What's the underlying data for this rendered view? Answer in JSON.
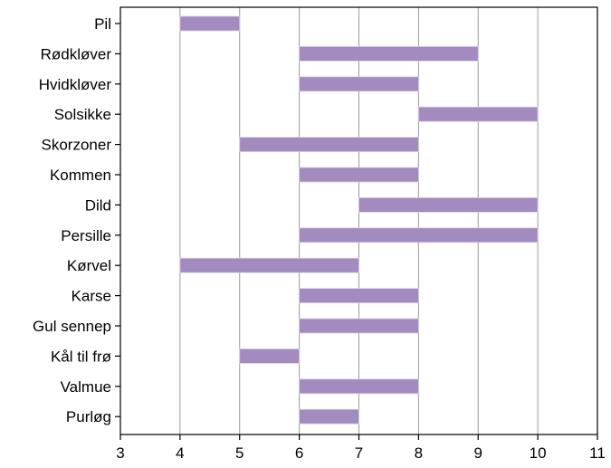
{
  "chart_data": {
    "type": "bar",
    "orientation": "horizontal-range",
    "categories": [
      "Pil",
      "Rødkløver",
      "Hvidkløver",
      "Solsikke",
      "Skorzoner",
      "Kommen",
      "Dild",
      "Persille",
      "Kørvel",
      "Karse",
      "Gul sennep",
      "Kål til frø",
      "Valmue",
      "Purløg"
    ],
    "ranges": [
      [
        4,
        5
      ],
      [
        6,
        9
      ],
      [
        6,
        8
      ],
      [
        8,
        10
      ],
      [
        5,
        8
      ],
      [
        6,
        8
      ],
      [
        7,
        10
      ],
      [
        6,
        10
      ],
      [
        4,
        7
      ],
      [
        6,
        8
      ],
      [
        6,
        8
      ],
      [
        5,
        6
      ],
      [
        6,
        8
      ],
      [
        6,
        7
      ]
    ],
    "xlim": [
      3,
      11
    ],
    "xticks": [
      "3",
      "4",
      "5",
      "6",
      "7",
      "8",
      "9",
      "10",
      "11"
    ],
    "grid": "vertical",
    "bar_color": "#a38bbf",
    "title": "",
    "xlabel": "",
    "ylabel": ""
  }
}
